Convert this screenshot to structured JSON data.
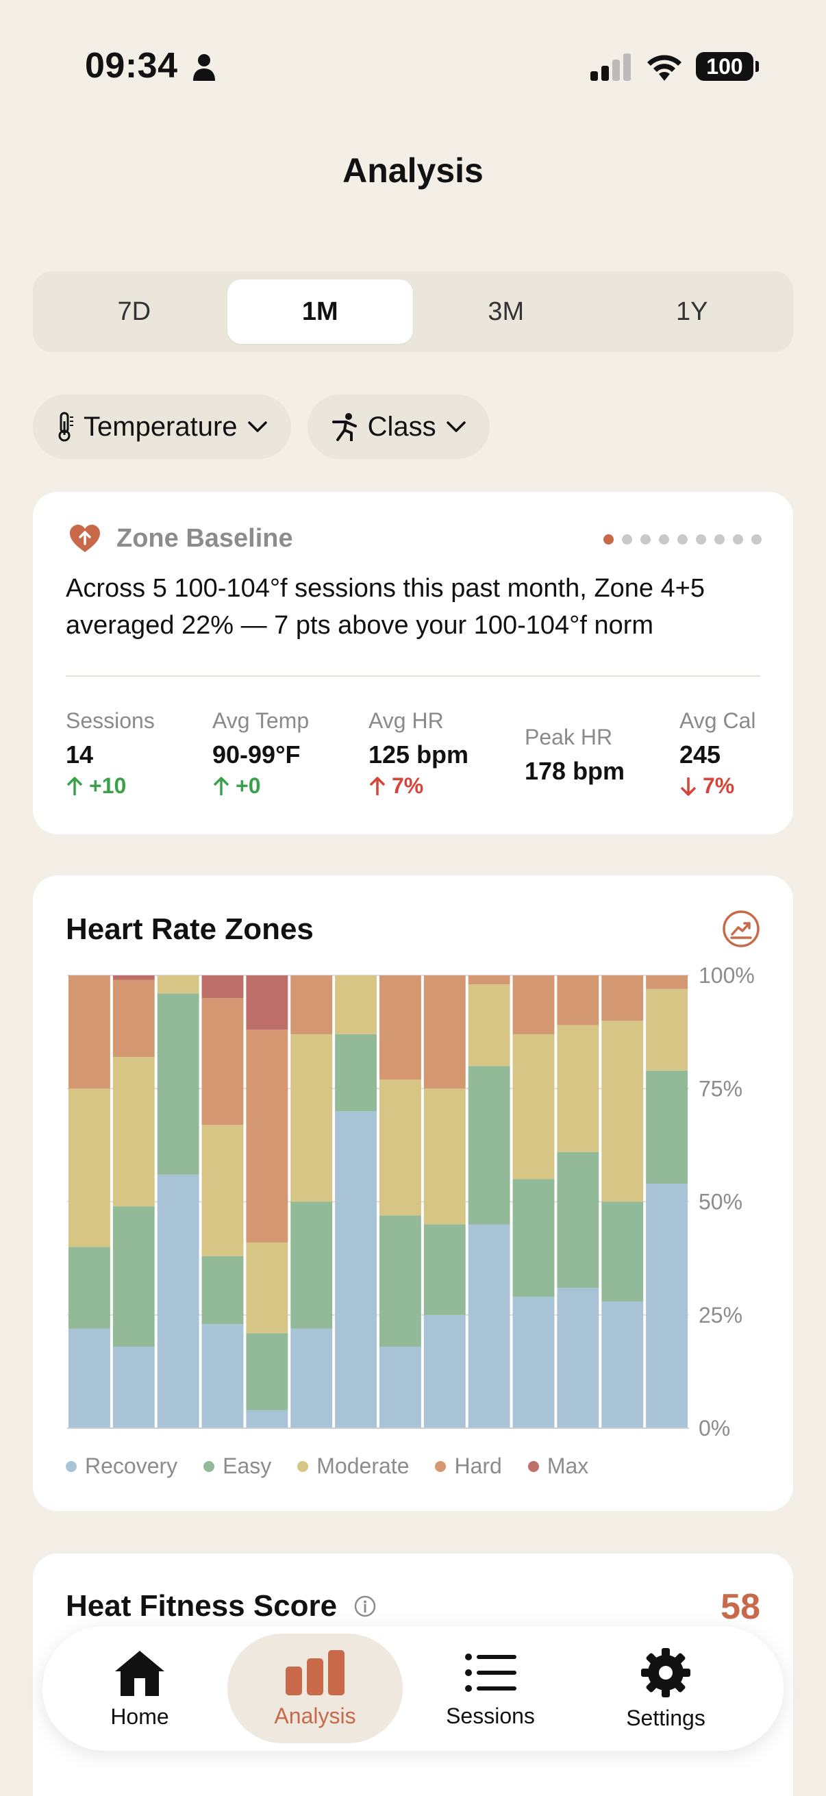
{
  "status_bar": {
    "time": "09:34",
    "battery": "100"
  },
  "page_title": "Analysis",
  "ranges": {
    "items": [
      "7D",
      "1M",
      "3M",
      "1Y"
    ],
    "selected": "1M"
  },
  "filters": {
    "temperature": "Temperature",
    "class": "Class"
  },
  "zone_baseline": {
    "title": "Zone Baseline",
    "text": "Across 5 100-104°f sessions this past month, Zone 4+5 averaged 22% — 7 pts above your 100-104°f norm",
    "pagination": {
      "count": 9,
      "active": 0
    },
    "stats": [
      {
        "label": "Sessions",
        "value": "14",
        "delta": "+10",
        "direction": "up",
        "tone": "good"
      },
      {
        "label": "Avg Temp",
        "value": "90-99°F",
        "delta": "+0",
        "direction": "up",
        "tone": "good"
      },
      {
        "label": "Avg HR",
        "value": "125 bpm",
        "delta": "7%",
        "direction": "up",
        "tone": "bad"
      },
      {
        "label": "Peak HR",
        "value": "178 bpm",
        "delta": "",
        "direction": "",
        "tone": ""
      },
      {
        "label": "Avg Cal",
        "value": "245",
        "delta": "7%",
        "direction": "down",
        "tone": "bad"
      }
    ]
  },
  "heart_rate_zones": {
    "title": "Heart Rate Zones",
    "legend": [
      "Recovery",
      "Easy",
      "Moderate",
      "Hard",
      "Max"
    ],
    "colors": {
      "Recovery": "#a8c2d6",
      "Easy": "#93ba98",
      "Moderate": "#d6c584",
      "Hard": "#d39872",
      "Max": "#bf6f6a"
    }
  },
  "chart_data": {
    "type": "bar",
    "stacked": true,
    "title": "Heart Rate Zones",
    "ylim": [
      0,
      100
    ],
    "yticks": [
      "100%",
      "75%",
      "50%",
      "25%",
      "0%"
    ],
    "series": [
      {
        "name": "Recovery",
        "values": [
          22,
          18,
          56,
          23,
          4,
          22,
          70,
          18,
          25,
          45,
          29,
          31,
          28,
          54
        ]
      },
      {
        "name": "Easy",
        "values": [
          18,
          31,
          40,
          15,
          17,
          28,
          17,
          29,
          20,
          35,
          26,
          30,
          22,
          25
        ]
      },
      {
        "name": "Moderate",
        "values": [
          35,
          33,
          4,
          29,
          20,
          37,
          13,
          30,
          30,
          18,
          32,
          28,
          40,
          18
        ]
      },
      {
        "name": "Hard",
        "values": [
          25,
          17,
          0,
          28,
          47,
          13,
          0,
          23,
          25,
          2,
          13,
          11,
          10,
          3
        ]
      },
      {
        "name": "Max",
        "values": [
          0,
          1,
          0,
          5,
          12,
          0,
          0,
          0,
          0,
          0,
          0,
          0,
          0,
          0
        ]
      }
    ]
  },
  "heat_fitness": {
    "title": "Heat Fitness Score",
    "score": "58"
  },
  "tabbar": {
    "items": [
      {
        "label": "Home",
        "icon": "home-icon"
      },
      {
        "label": "Analysis",
        "icon": "bar-chart-icon"
      },
      {
        "label": "Sessions",
        "icon": "list-icon"
      },
      {
        "label": "Settings",
        "icon": "gear-icon"
      }
    ],
    "selected": "Analysis"
  }
}
